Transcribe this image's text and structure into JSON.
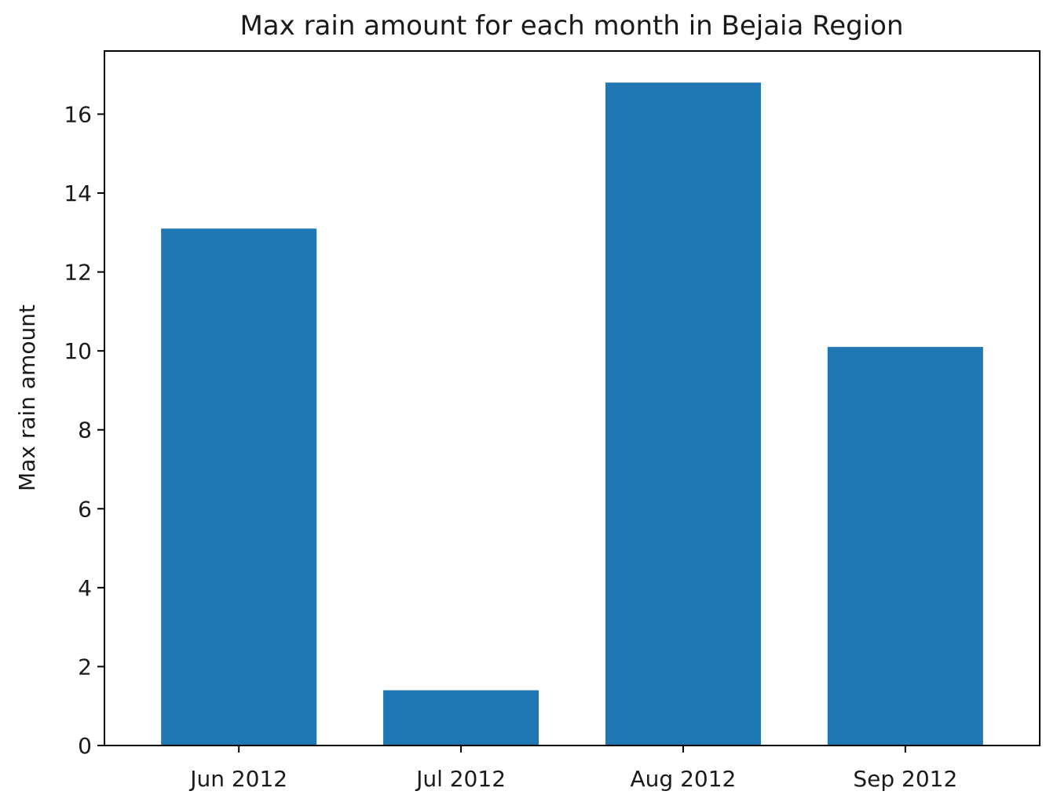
{
  "chart_data": {
    "type": "bar",
    "title": "Max rain amount for each month in Bejaia Region",
    "xlabel": "",
    "ylabel": "Max rain amount",
    "categories": [
      "Jun 2012",
      "Jul 2012",
      "Aug 2012",
      "Sep 2012"
    ],
    "values": [
      13.1,
      1.4,
      16.8,
      10.1
    ],
    "ylim": [
      0,
      17.6
    ],
    "yticks": [
      0,
      2,
      4,
      6,
      8,
      10,
      12,
      14,
      16
    ],
    "bar_color": "#1f77b4",
    "grid": false,
    "legend": "none"
  }
}
